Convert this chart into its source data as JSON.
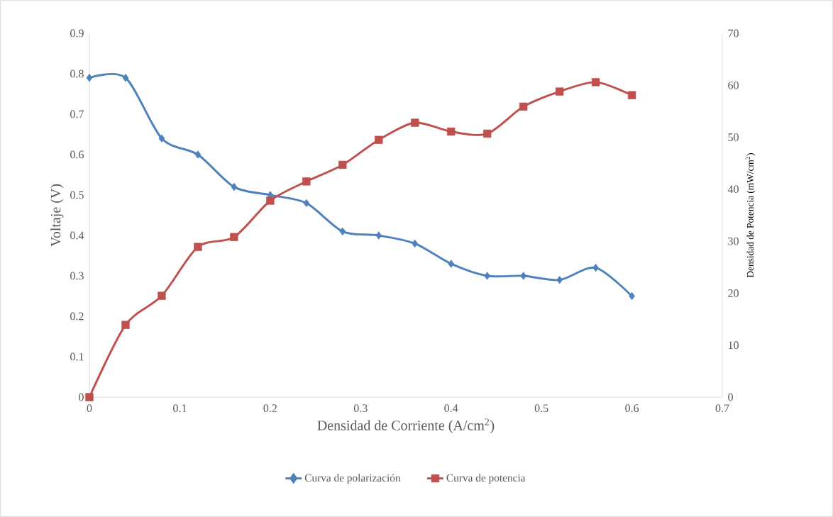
{
  "chart_data": {
    "type": "line",
    "xlabel": "Densidad de Corriente (A/cm$^{2}$)",
    "ylabel": "Voltaje (V)",
    "y2label": "Densidad de Potencia (mW/cm$^{2}$)",
    "xlim": [
      0,
      0.7
    ],
    "xticks": [
      0,
      0.1,
      0.2,
      0.3,
      0.4,
      0.5,
      0.6,
      0.7
    ],
    "ylim": [
      0,
      0.9
    ],
    "yticks": [
      0,
      0.1,
      0.2,
      0.3,
      0.4,
      0.5,
      0.6,
      0.7,
      0.8,
      0.9
    ],
    "y2lim": [
      0,
      70
    ],
    "y2ticks": [
      0,
      10,
      20,
      30,
      40,
      50,
      60,
      70
    ],
    "x": [
      0,
      0.04,
      0.08,
      0.12,
      0.16,
      0.2,
      0.24,
      0.28,
      0.32,
      0.36,
      0.4,
      0.44,
      0.48,
      0.52,
      0.56,
      0.6
    ],
    "legend": "bottom",
    "grid": false,
    "series": [
      {
        "name": "Curva de polarización",
        "color": "#4f81bd",
        "marker": "diamond",
        "values": [
          0.79,
          0.79,
          0.64,
          0.6,
          0.52,
          0.5,
          0.48,
          0.41,
          0.4,
          0.38,
          0.33,
          0.3,
          0.3,
          0.29,
          0.32,
          0.25
        ]
      },
      {
        "name": "Curva de potencia",
        "color": "#c0504d",
        "marker": "square",
        "axis": "y2",
        "values": [
          0,
          13.9,
          19.5,
          28.9,
          30.8,
          37.8,
          41.5,
          44.7,
          49.5,
          52.8,
          51.1,
          50.7,
          55.9,
          58.8,
          60.6,
          58.1
        ]
      }
    ]
  }
}
